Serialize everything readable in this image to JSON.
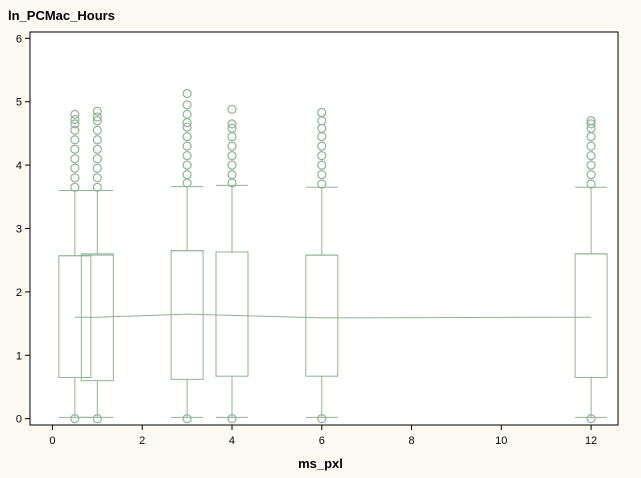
{
  "chart_data": {
    "type": "box",
    "title": "ln_PCMac_Hours",
    "xlabel": "ms_pxl",
    "ylabel": "",
    "xlim": [
      -0.5,
      12.6
    ],
    "ylim": [
      -0.1,
      6.1
    ],
    "xticks": [
      0,
      2,
      4,
      6,
      8,
      10,
      12
    ],
    "yticks": [
      0,
      1,
      2,
      3,
      4,
      5,
      6
    ],
    "grid": false,
    "color": "#8fb395",
    "boxes": [
      {
        "x": 0.5,
        "q1": 0.65,
        "median": 2.57,
        "q3": 2.57,
        "whisker_low": 0.02,
        "whisker_high": 3.6,
        "outliers": [
          0.0,
          3.65,
          3.8,
          3.95,
          4.1,
          4.25,
          4.4,
          4.55,
          4.65,
          4.72,
          4.8
        ]
      },
      {
        "x": 1.0,
        "q1": 0.6,
        "median": 2.58,
        "q3": 2.6,
        "whisker_low": 0.02,
        "whisker_high": 3.6,
        "outliers": [
          0.0,
          3.65,
          3.8,
          3.95,
          4.1,
          4.25,
          4.4,
          4.55,
          4.7,
          4.76,
          4.85
        ]
      },
      {
        "x": 3.0,
        "q1": 0.62,
        "median": 2.65,
        "q3": 2.65,
        "whisker_low": 0.02,
        "whisker_high": 3.66,
        "outliers": [
          0.0,
          3.72,
          3.85,
          4.0,
          4.15,
          4.3,
          4.45,
          4.6,
          4.67,
          4.8,
          4.95,
          5.13
        ]
      },
      {
        "x": 4.0,
        "q1": 0.67,
        "median": 2.63,
        "q3": 2.63,
        "whisker_low": 0.02,
        "whisker_high": 3.68,
        "outliers": [
          0.0,
          3.72,
          3.85,
          4.0,
          4.15,
          4.3,
          4.45,
          4.58,
          4.65,
          4.88
        ]
      },
      {
        "x": 6.0,
        "q1": 0.67,
        "median": 2.58,
        "q3": 2.58,
        "whisker_low": 0.02,
        "whisker_high": 3.65,
        "outliers": [
          0.0,
          3.7,
          3.85,
          4.0,
          4.15,
          4.3,
          4.45,
          4.58,
          4.7,
          4.83
        ]
      },
      {
        "x": 12.0,
        "q1": 0.65,
        "median": 2.6,
        "q3": 2.6,
        "whisker_low": 0.02,
        "whisker_high": 3.65,
        "outliers": [
          0.0,
          3.7,
          3.85,
          4.0,
          4.15,
          4.3,
          4.45,
          4.58,
          4.65,
          4.7
        ]
      }
    ],
    "mean_line": {
      "x": [
        0.5,
        1.0,
        3.0,
        4.0,
        6.0,
        12.0
      ],
      "y": [
        1.6,
        1.6,
        1.65,
        1.63,
        1.59,
        1.6
      ]
    }
  }
}
